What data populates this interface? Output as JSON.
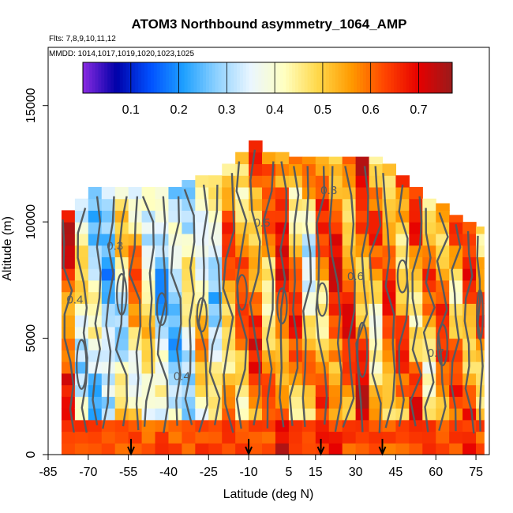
{
  "chart_data": {
    "type": "heatmap",
    "title": "ATOM3 Northbound asymmetry_1064_AMP",
    "subtitle_flights": "Flts: 7,8,9,10,11,12",
    "subtitle_dates": "MMDD: 1014,1017,1019,1020,1023,1025",
    "xlabel": "Latitude (deg N)",
    "ylabel": "Altitude (m)",
    "xlim": [
      -85,
      80
    ],
    "ylim": [
      0,
      17500
    ],
    "x_ticks": [
      -85,
      -70,
      -55,
      -40,
      -25,
      -10,
      5,
      15,
      30,
      45,
      60,
      75
    ],
    "x_tick_labels": [
      "-85",
      "-70",
      "-55",
      "-40",
      "-25",
      "-10",
      "5",
      "15",
      "30",
      "45",
      "60",
      "75"
    ],
    "y_ticks": [
      0,
      5000,
      10000,
      15000
    ],
    "y_tick_labels": [
      "0",
      "5000",
      "10000",
      "15000"
    ],
    "colorbar": {
      "range": [
        0.0,
        0.77
      ],
      "ticks": [
        0.1,
        0.2,
        0.3,
        0.4,
        0.5,
        0.6,
        0.7
      ],
      "tick_labels": [
        "0.1",
        "0.2",
        "0.3",
        "0.4",
        "0.5",
        "0.6",
        "0.7"
      ],
      "colors": [
        "#8a2be2",
        "#0000a8",
        "#0050ff",
        "#1ea0ff",
        "#8fd2ff",
        "#eaf6ff",
        "#ffffc0",
        "#ffd84a",
        "#ff9a00",
        "#ff4400",
        "#e60000",
        "#9a1b1b"
      ]
    },
    "contour_labels": [
      "0.3",
      "0.4",
      "0.5",
      "0.6",
      "0.7"
    ],
    "profile_markers_latitude": [
      -54,
      -10,
      17,
      40
    ],
    "profile_columns": [
      {
        "lat_range": [
          -80,
          -75
        ],
        "top": 10500,
        "base": 0.62,
        "amp": 0.1
      },
      {
        "lat_range": [
          -75,
          -70
        ],
        "top": 11000,
        "base": 0.4,
        "amp": 0.12
      },
      {
        "lat_range": [
          -70,
          -65
        ],
        "top": 11500,
        "base": 0.33,
        "amp": 0.1
      },
      {
        "lat_range": [
          -65,
          -60
        ],
        "top": 11500,
        "base": 0.28,
        "amp": 0.08
      },
      {
        "lat_range": [
          -60,
          -55
        ],
        "top": 11500,
        "base": 0.4,
        "amp": 0.12
      },
      {
        "lat_range": [
          -55,
          -50
        ],
        "top": 11500,
        "base": 0.5,
        "amp": 0.12
      },
      {
        "lat_range": [
          -50,
          -45
        ],
        "top": 11500,
        "base": 0.42,
        "amp": 0.1
      },
      {
        "lat_range": [
          -45,
          -40
        ],
        "top": 11500,
        "base": 0.32,
        "amp": 0.1
      },
      {
        "lat_range": [
          -40,
          -35
        ],
        "top": 11500,
        "base": 0.3,
        "amp": 0.1
      },
      {
        "lat_range": [
          -35,
          -30
        ],
        "top": 11800,
        "base": 0.38,
        "amp": 0.12
      },
      {
        "lat_range": [
          -30,
          -25
        ],
        "top": 12000,
        "base": 0.45,
        "amp": 0.12
      },
      {
        "lat_range": [
          -25,
          -20
        ],
        "top": 12000,
        "base": 0.35,
        "amp": 0.1
      },
      {
        "lat_range": [
          -20,
          -15
        ],
        "top": 12500,
        "base": 0.55,
        "amp": 0.1
      },
      {
        "lat_range": [
          -15,
          -10
        ],
        "top": 13000,
        "base": 0.55,
        "amp": 0.1
      },
      {
        "lat_range": [
          -10,
          -5
        ],
        "top": 13500,
        "base": 0.58,
        "amp": 0.1
      },
      {
        "lat_range": [
          -5,
          0
        ],
        "top": 13000,
        "base": 0.52,
        "amp": 0.12
      },
      {
        "lat_range": [
          0,
          5
        ],
        "top": 13000,
        "base": 0.62,
        "amp": 0.1
      },
      {
        "lat_range": [
          5,
          10
        ],
        "top": 12800,
        "base": 0.56,
        "amp": 0.12
      },
      {
        "lat_range": [
          10,
          15
        ],
        "top": 12800,
        "base": 0.45,
        "amp": 0.14
      },
      {
        "lat_range": [
          15,
          20
        ],
        "top": 12800,
        "base": 0.55,
        "amp": 0.12
      },
      {
        "lat_range": [
          20,
          25
        ],
        "top": 12800,
        "base": 0.62,
        "amp": 0.1
      },
      {
        "lat_range": [
          25,
          30
        ],
        "top": 12800,
        "base": 0.58,
        "amp": 0.12
      },
      {
        "lat_range": [
          30,
          35
        ],
        "top": 12800,
        "base": 0.6,
        "amp": 0.12
      },
      {
        "lat_range": [
          35,
          40
        ],
        "top": 12800,
        "base": 0.52,
        "amp": 0.12
      },
      {
        "lat_range": [
          40,
          45
        ],
        "top": 12500,
        "base": 0.58,
        "amp": 0.1
      },
      {
        "lat_range": [
          45,
          50
        ],
        "top": 12000,
        "base": 0.55,
        "amp": 0.1
      },
      {
        "lat_range": [
          50,
          55
        ],
        "top": 11500,
        "base": 0.55,
        "amp": 0.12
      },
      {
        "lat_range": [
          55,
          60
        ],
        "top": 11000,
        "base": 0.52,
        "amp": 0.12
      },
      {
        "lat_range": [
          60,
          65
        ],
        "top": 10800,
        "base": 0.58,
        "amp": 0.1
      },
      {
        "lat_range": [
          65,
          70
        ],
        "top": 10300,
        "base": 0.55,
        "amp": 0.1
      },
      {
        "lat_range": [
          70,
          75
        ],
        "top": 10000,
        "base": 0.58,
        "amp": 0.1
      },
      {
        "lat_range": [
          75,
          78
        ],
        "top": 9800,
        "base": 0.55,
        "amp": 0.1
      }
    ]
  }
}
